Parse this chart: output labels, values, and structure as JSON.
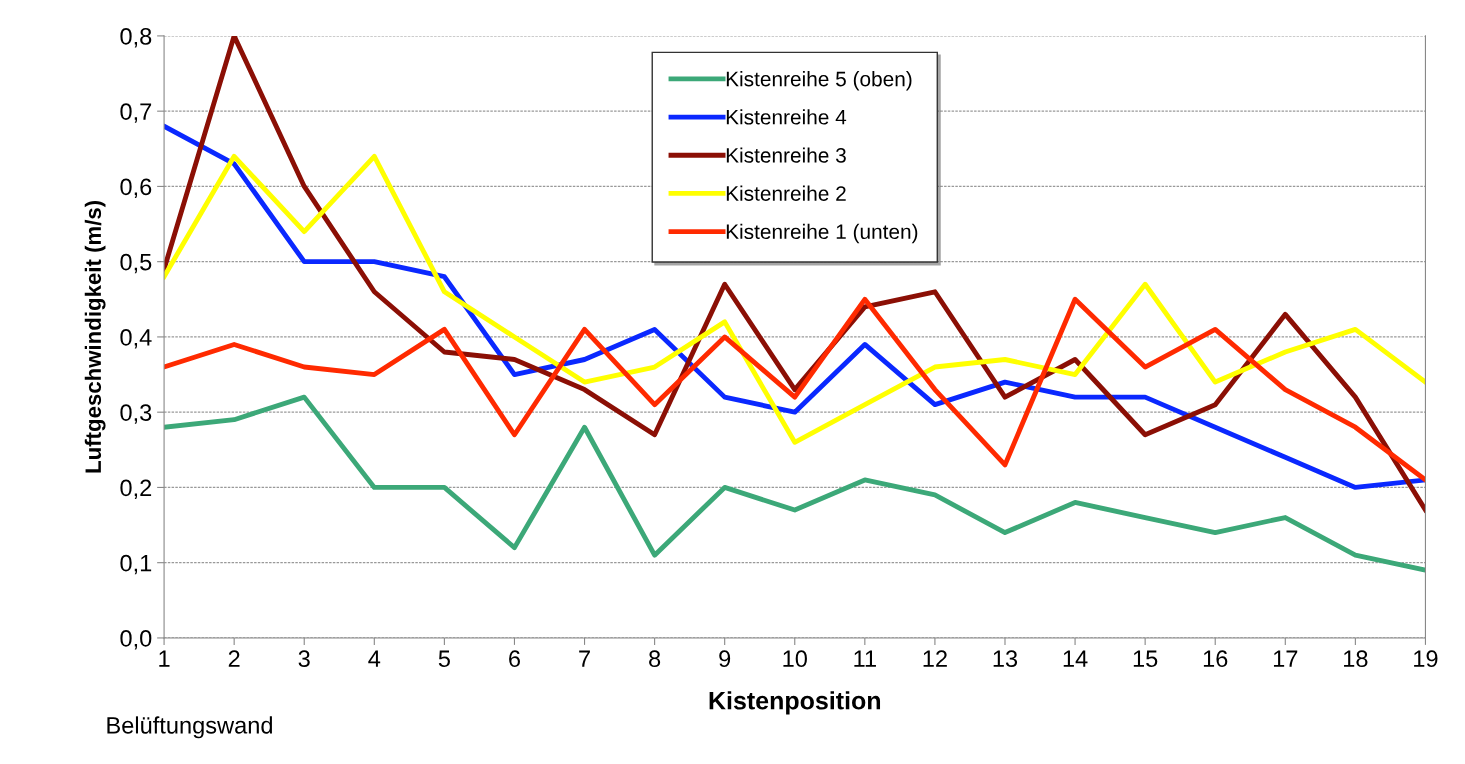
{
  "chart_data": {
    "type": "line",
    "xlabel": "Kistenposition",
    "ylabel": "Luftgeschwindigkeit (m/s)",
    "x": [
      1,
      2,
      3,
      4,
      5,
      6,
      7,
      8,
      9,
      10,
      11,
      12,
      13,
      14,
      15,
      16,
      17,
      18,
      19
    ],
    "series": [
      {
        "name": "Kistenreihe 5 (oben)",
        "color": "#3ca878",
        "values": [
          0.28,
          0.29,
          0.32,
          0.2,
          0.2,
          0.12,
          0.28,
          0.11,
          0.2,
          0.17,
          0.21,
          0.19,
          0.14,
          0.18,
          0.16,
          0.14,
          0.16,
          0.11,
          0.09
        ]
      },
      {
        "name": "Kistenreihe 4",
        "color": "#0a28ff",
        "values": [
          0.68,
          0.63,
          0.5,
          0.5,
          0.48,
          0.35,
          0.37,
          0.41,
          0.32,
          0.3,
          0.39,
          0.31,
          0.34,
          0.32,
          0.32,
          0.28,
          0.24,
          0.2,
          0.21
        ]
      },
      {
        "name": "Kistenreihe 3",
        "color": "#8b0f05",
        "values": [
          0.49,
          0.8,
          0.6,
          0.46,
          0.38,
          0.37,
          0.33,
          0.27,
          0.47,
          0.33,
          0.44,
          0.46,
          0.32,
          0.37,
          0.27,
          0.31,
          0.43,
          0.32,
          0.17
        ]
      },
      {
        "name": "Kistenreihe 2",
        "color": "#ffff00",
        "values": [
          0.48,
          0.64,
          0.54,
          0.64,
          0.46,
          0.4,
          0.34,
          0.36,
          0.42,
          0.26,
          0.31,
          0.36,
          0.37,
          0.35,
          0.47,
          0.34,
          0.38,
          0.41,
          0.34
        ]
      },
      {
        "name": "Kistenreihe 1 (unten)",
        "color": "#ff2a00",
        "values": [
          0.36,
          0.39,
          0.36,
          0.35,
          0.41,
          0.27,
          0.41,
          0.31,
          0.4,
          0.32,
          0.45,
          0.33,
          0.23,
          0.45,
          0.36,
          0.41,
          0.33,
          0.28,
          0.21
        ]
      }
    ],
    "xlim": [
      1,
      19
    ],
    "xticks": [
      1,
      2,
      3,
      4,
      5,
      6,
      7,
      8,
      9,
      10,
      11,
      12,
      13,
      14,
      15,
      16,
      17,
      18,
      19
    ],
    "ylim": [
      0,
      0.8
    ],
    "yticks": [
      {
        "value": 0,
        "label": "0,0"
      },
      {
        "value": 0.1,
        "label": "0,1"
      },
      {
        "value": 0.2,
        "label": "0,2"
      },
      {
        "value": 0.3,
        "label": "0,3"
      },
      {
        "value": 0.4,
        "label": "0,4"
      },
      {
        "value": 0.5,
        "label": "0,5"
      },
      {
        "value": 0.6,
        "label": "0,6"
      },
      {
        "value": 0.7,
        "label": "0,7"
      },
      {
        "value": 0.8,
        "label": "0,8"
      }
    ],
    "grid": "y",
    "legend": "top",
    "marker": "none",
    "line_style": "solid",
    "annotations": [
      "Belüftungswand"
    ]
  }
}
